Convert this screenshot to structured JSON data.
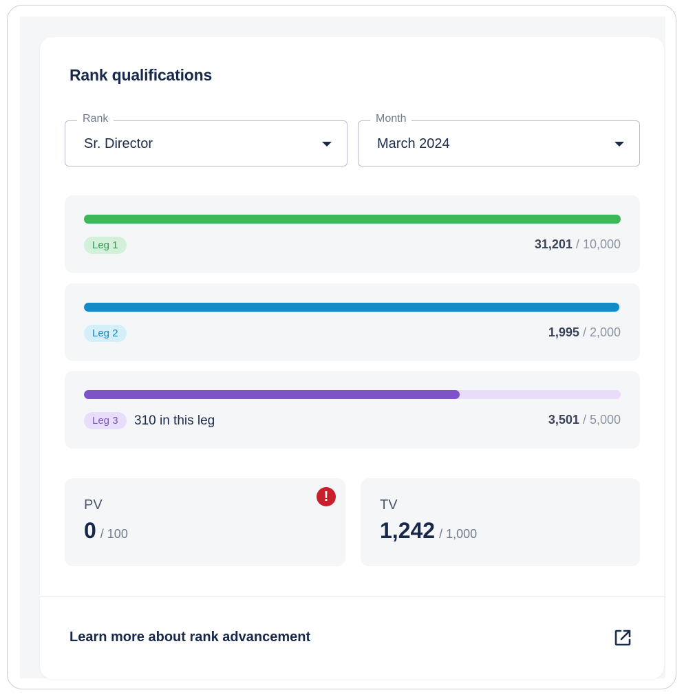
{
  "title": "Rank qualifications",
  "rank_select": {
    "legend": "Rank",
    "value": "Sr. Director"
  },
  "month_select": {
    "legend": "Month",
    "value": "March 2024"
  },
  "legs": [
    {
      "badge": "Leg 1",
      "note": "",
      "current": "31,201",
      "target": "10,000",
      "progress": 1.0,
      "fill_color": "#3cb85a",
      "track_color": "#3cb85a",
      "badge_bg": "#d3f0da",
      "badge_color": "#2e9a4c"
    },
    {
      "badge": "Leg 2",
      "note": "",
      "current": "1,995",
      "target": "2,000",
      "progress": 0.9975,
      "fill_color": "#128bc6",
      "track_color": "#d6edf8",
      "badge_bg": "#d4eefa",
      "badge_color": "#1487bf"
    },
    {
      "badge": "Leg 3",
      "note": "310 in this leg",
      "current": "3,501",
      "target": "5,000",
      "progress": 0.7,
      "fill_color": "#7c53c8",
      "track_color": "#e7dcfa",
      "badge_bg": "#e8ddfb",
      "badge_color": "#7a53c4"
    }
  ],
  "stats": {
    "pv": {
      "label": "PV",
      "value": "0",
      "target": "/ 100",
      "alert": "!"
    },
    "tv": {
      "label": "TV",
      "value": "1,242",
      "target": "/ 1,000"
    }
  },
  "footer": {
    "link_text": "Learn more about rank advancement",
    "icon": "external-link-icon"
  }
}
